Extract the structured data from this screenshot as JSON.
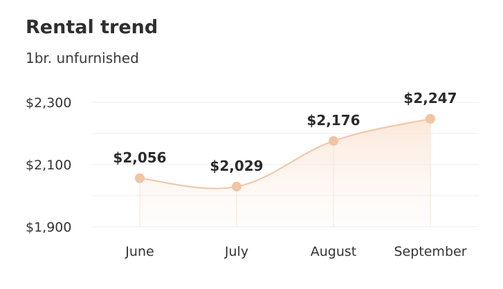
{
  "chart_data": {
    "type": "line",
    "title": "Rental trend",
    "subtitle": "1br. unfurnished",
    "categories": [
      "June",
      "July",
      "August",
      "September"
    ],
    "series": [
      {
        "values": [
          2056,
          2029,
          2176,
          2247
        ]
      }
    ],
    "data_labels": [
      "$2,056",
      "$2,029",
      "$2,176",
      "$2,247"
    ],
    "y_ticks": [
      {
        "value": 1900,
        "label": "$1,900"
      },
      {
        "value": 2100,
        "label": "$2,100"
      },
      {
        "value": 2300,
        "label": "$2,300"
      }
    ],
    "ylim": [
      1900,
      2300
    ],
    "grid": true,
    "colors": {
      "line": "#f0c8aa",
      "marker": "#f2c4a4",
      "fill": "#fbe6d8",
      "grid": "#ececec"
    }
  }
}
